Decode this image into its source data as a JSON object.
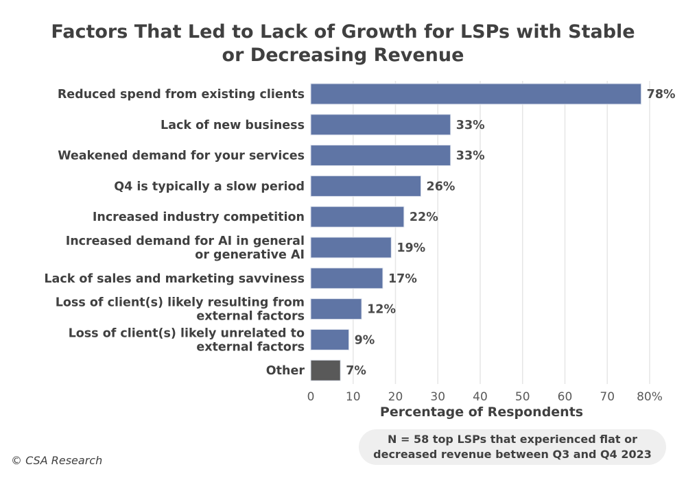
{
  "chart_data": {
    "type": "bar",
    "orientation": "horizontal",
    "title": "Factors That Led to Lack of Growth for LSPs with Stable or Decreasing Revenue",
    "title_lines": [
      "Factors That Led to Lack of Growth for LSPs with Stable",
      "or Decreasing Revenue"
    ],
    "categories": [
      [
        "Reduced spend from existing clients"
      ],
      [
        "Lack of new business"
      ],
      [
        "Weakened demand for your services"
      ],
      [
        "Q4 is typically a slow period"
      ],
      [
        "Increased industry competition"
      ],
      [
        "Increased demand for AI in general",
        "or generative AI"
      ],
      [
        "Lack of sales and marketing savviness"
      ],
      [
        "Loss of client(s) likely resulting from",
        "external factors "
      ],
      [
        "Loss of client(s) likely unrelated to",
        "external factors"
      ],
      [
        "Other"
      ]
    ],
    "values": [
      78,
      33,
      33,
      26,
      22,
      19,
      17,
      12,
      9,
      7
    ],
    "value_labels": [
      "78%",
      "33%",
      "33%",
      "26%",
      "22%",
      "19%",
      "17%",
      "12%",
      "9%",
      "7%"
    ],
    "bar_colors": [
      "#5f75a5",
      "#5f75a5",
      "#5f75a5",
      "#5f75a5",
      "#5f75a5",
      "#5f75a5",
      "#5f75a5",
      "#5f75a5",
      "#5f75a5",
      "#595959"
    ],
    "xlabel": "Percentage of Respondents",
    "ylabel": "",
    "xlim": [
      0,
      80
    ],
    "xticks": [
      0,
      10,
      20,
      30,
      40,
      50,
      60,
      70,
      80
    ],
    "xtick_labels": [
      "0",
      "10",
      "20",
      "30",
      "40",
      "50",
      "60",
      "70",
      "80%"
    ],
    "grid": true
  },
  "note": [
    "N = 58 top LSPs that experienced flat or",
    "decreased revenue between Q3 and Q4 2023"
  ],
  "copyright": "© CSA Research"
}
